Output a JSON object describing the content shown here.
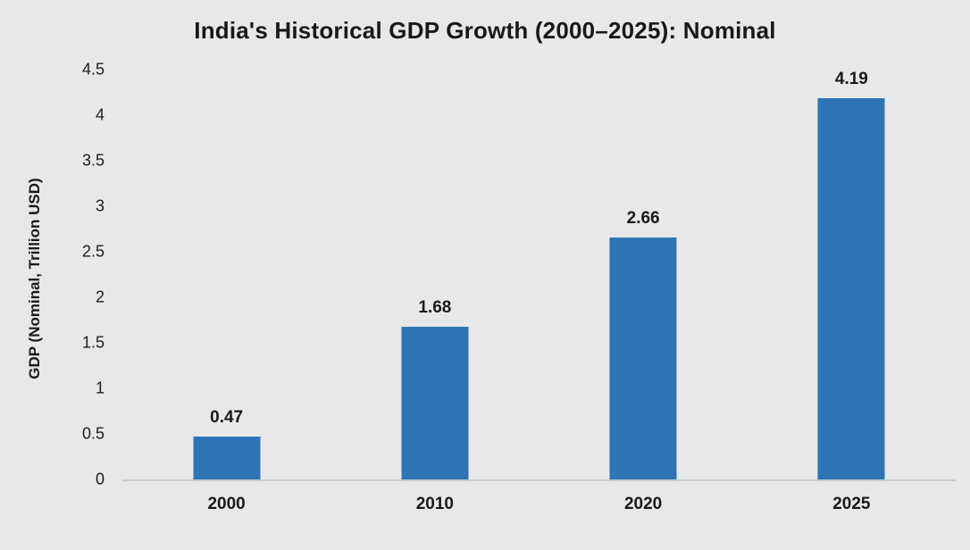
{
  "chart_data": {
    "type": "bar",
    "title": "India's Historical GDP Growth (2000–2025): Nominal",
    "xlabel": "",
    "ylabel": "GDP (Nominal, Trillion USD)",
    "categories": [
      "2000",
      "2010",
      "2020",
      "2025"
    ],
    "values": [
      0.47,
      1.68,
      2.66,
      4.19
    ],
    "value_labels": [
      "0.47",
      "1.68",
      "2.66",
      "4.19"
    ],
    "yticks": [
      0,
      0.5,
      1,
      1.5,
      2,
      2.5,
      3,
      3.5,
      4,
      4.5
    ],
    "ytick_labels": [
      "0",
      "0.5",
      "1",
      "1.5",
      "2",
      "2.5",
      "3",
      "3.5",
      "4",
      "4.5"
    ],
    "ylim": [
      0,
      4.5
    ],
    "grid": false,
    "legend": null,
    "colors": {
      "bar": "#2E75B6",
      "background": "#E8E8E8",
      "axis_line": "#CBCBCB",
      "text": "#191919"
    }
  }
}
